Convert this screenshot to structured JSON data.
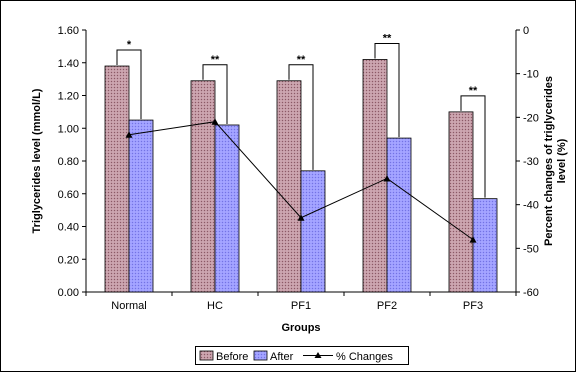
{
  "chart_data": {
    "type": "bar",
    "categories": [
      "Normal",
      "HC",
      "PF1",
      "PF2",
      "PF3"
    ],
    "series": [
      {
        "name": "Before",
        "axis": "left",
        "values": [
          1.38,
          1.29,
          1.29,
          1.42,
          1.1
        ],
        "color": "#c49aa5"
      },
      {
        "name": "After",
        "axis": "left",
        "values": [
          1.05,
          1.02,
          0.74,
          0.94,
          0.57
        ],
        "color": "#9c9cff"
      },
      {
        "name": "% Changes",
        "axis": "right",
        "type": "line",
        "values": [
          -24,
          -21,
          -43,
          -34,
          -48
        ],
        "color": "#000000"
      }
    ],
    "significance": [
      "*",
      "**",
      "**",
      "**",
      "**"
    ],
    "xlabel": "Groups",
    "ylabel": "Triglycerides level (mmol/L)",
    "ylabel_right_line1": "Percent changes of triglycerides",
    "ylabel_right_line2": "level (%)",
    "ylim": [
      0,
      1.6
    ],
    "y_ticks": [
      "0.00",
      "0.20",
      "0.40",
      "0.60",
      "0.80",
      "1.00",
      "1.20",
      "1.40",
      "1.60"
    ],
    "y2lim": [
      -60,
      0
    ],
    "y2_ticks": [
      "0",
      "-10",
      "-20",
      "-30",
      "-40",
      "-50",
      "-60"
    ],
    "legend": [
      "Before",
      "After",
      "% Changes"
    ],
    "legend_position": "bottom",
    "grid": false
  }
}
